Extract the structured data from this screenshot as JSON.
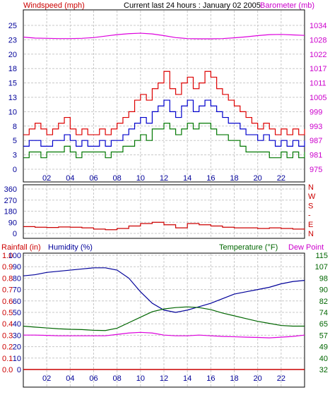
{
  "header": {
    "left_label": "Windspeed (mph)",
    "title": "Current last 24 hours : January 02 2005",
    "right_label": "Barometer (mb)"
  },
  "colors": {
    "background": "#ffffff",
    "frame": "#000000",
    "grid": "#c8c8c8",
    "wind": "#dd0000",
    "gust": "#ff0000",
    "wind_avg": "#0000cc",
    "wind_min": "#007700",
    "barometer": "#dd00dd",
    "direction": "#cc0000",
    "humidity": "#000099",
    "temperature": "#006600",
    "dew_point": "#dd00dd",
    "rainfall": "#cc0000",
    "label_red": "#cc0000",
    "label_blue": "#000099",
    "label_green": "#006600",
    "label_magenta": "#cc00cc"
  },
  "x_axis": {
    "range_hours": [
      0,
      24
    ],
    "tick_labels": [
      "02",
      "04",
      "06",
      "08",
      "10",
      "12",
      "14",
      "16",
      "18",
      "20",
      "22"
    ]
  },
  "chart_data": [
    {
      "type": "line",
      "panel": "wind-barometer",
      "x_unit": "hour",
      "y_left": {
        "label": "Windspeed (mph)",
        "ticks": [
          "0",
          "3",
          "5",
          "8",
          "10",
          "13",
          "15",
          "18",
          "20",
          "23",
          "25"
        ],
        "range": [
          0,
          25
        ]
      },
      "y_right": {
        "label": "Barometer (mb)",
        "ticks": [
          "975",
          "981",
          "987",
          "993",
          "999",
          "1005",
          "1011",
          "1017",
          "1022",
          "1028",
          "1034"
        ],
        "range": [
          975,
          1034
        ]
      },
      "grid": true,
      "series": [
        {
          "name": "Windspeed (mph)",
          "axis": "left",
          "color": "#dd0000",
          "x": [
            0,
            0.5,
            1,
            1.5,
            2,
            2.5,
            3,
            3.5,
            4,
            4.5,
            5,
            5.5,
            6,
            6.5,
            7,
            7.5,
            8,
            8.5,
            9,
            9.5,
            10,
            10.5,
            11,
            11.5,
            12,
            12.5,
            13,
            13.5,
            14,
            14.5,
            15,
            15.5,
            16,
            16.5,
            17,
            17.5,
            18,
            18.5,
            19,
            19.5,
            20,
            20.5,
            21,
            21.5,
            22,
            22.5,
            23,
            23.5,
            24
          ],
          "values": [
            6,
            7,
            8,
            7,
            6,
            7,
            8,
            9,
            7,
            6,
            7,
            6,
            6,
            7,
            6,
            7,
            8,
            9,
            10,
            12,
            13,
            12,
            14,
            15,
            17,
            14,
            13,
            15,
            16,
            14,
            15,
            17,
            16,
            14,
            13,
            12,
            11,
            10,
            9,
            8,
            7,
            8,
            7,
            6,
            7,
            6,
            7,
            6,
            7
          ]
        },
        {
          "name": "Average wind",
          "axis": "left",
          "color": "#0000cc",
          "x": [
            0,
            0.5,
            1,
            1.5,
            2,
            2.5,
            3,
            3.5,
            4,
            4.5,
            5,
            5.5,
            6,
            6.5,
            7,
            7.5,
            8,
            8.5,
            9,
            9.5,
            10,
            10.5,
            11,
            11.5,
            12,
            12.5,
            13,
            13.5,
            14,
            14.5,
            15,
            15.5,
            16,
            16.5,
            17,
            17.5,
            18,
            18.5,
            19,
            19.5,
            20,
            20.5,
            21,
            21.5,
            22,
            22.5,
            23,
            23.5,
            24
          ],
          "values": [
            4,
            5,
            5,
            4,
            4,
            5,
            5,
            6,
            5,
            4,
            5,
            4,
            4,
            5,
            4,
            5,
            5,
            6,
            7,
            8,
            9,
            8,
            10,
            11,
            12,
            10,
            9,
            11,
            12,
            10,
            11,
            12,
            11,
            10,
            9,
            8,
            8,
            7,
            6,
            6,
            5,
            6,
            5,
            4,
            5,
            4,
            5,
            4,
            5
          ]
        },
        {
          "name": "Minimum wind",
          "axis": "left",
          "color": "#007700",
          "x": [
            0,
            0.5,
            1,
            1.5,
            2,
            2.5,
            3,
            3.5,
            4,
            4.5,
            5,
            5.5,
            6,
            6.5,
            7,
            7.5,
            8,
            8.5,
            9,
            9.5,
            10,
            10.5,
            11,
            11.5,
            12,
            12.5,
            13,
            13.5,
            14,
            14.5,
            15,
            15.5,
            16,
            16.5,
            17,
            17.5,
            18,
            18.5,
            19,
            19.5,
            20,
            20.5,
            21,
            21.5,
            22,
            22.5,
            23,
            23.5,
            24
          ],
          "values": [
            2,
            3,
            3,
            2,
            3,
            3,
            3,
            4,
            3,
            2,
            3,
            3,
            3,
            3,
            2,
            3,
            3,
            4,
            4,
            5,
            6,
            5,
            7,
            7,
            8,
            7,
            6,
            7,
            8,
            7,
            8,
            8,
            7,
            6,
            6,
            5,
            5,
            4,
            3,
            3,
            3,
            3,
            2,
            2,
            3,
            2,
            3,
            2,
            3
          ]
        },
        {
          "name": "Barometer (mb)",
          "axis": "right",
          "color": "#dd00dd",
          "x": [
            0,
            1,
            2,
            3,
            4,
            5,
            6,
            7,
            8,
            9,
            10,
            11,
            12,
            13,
            14,
            15,
            16,
            17,
            18,
            19,
            20,
            21,
            22,
            23,
            24
          ],
          "values": [
            1029.2,
            1028.8,
            1028.7,
            1028.6,
            1028.6,
            1028.7,
            1029.0,
            1029.6,
            1030.2,
            1030.6,
            1030.8,
            1030.5,
            1029.8,
            1029.0,
            1028.6,
            1028.5,
            1028.5,
            1028.6,
            1028.9,
            1029.3,
            1029.8,
            1030.2,
            1030.3,
            1030.1,
            1029.9
          ]
        }
      ]
    },
    {
      "type": "line",
      "panel": "wind-direction",
      "x_unit": "hour",
      "y_left": {
        "ticks": [
          "0",
          "90",
          "180",
          "270",
          "360"
        ],
        "range": [
          0,
          360
        ]
      },
      "y_right": {
        "ticks": [
          "N",
          "W",
          "S",
          "-",
          "E",
          "N"
        ]
      },
      "grid": true,
      "series": [
        {
          "name": "Wind direction",
          "color": "#cc0000",
          "x": [
            0,
            1,
            2,
            3,
            4,
            5,
            6,
            7,
            8,
            9,
            10,
            11,
            12,
            13,
            14,
            15,
            16,
            17,
            18,
            19,
            20,
            21,
            22,
            23,
            24
          ],
          "values": [
            55,
            50,
            48,
            52,
            50,
            45,
            35,
            30,
            40,
            60,
            80,
            90,
            70,
            45,
            80,
            70,
            60,
            50,
            45,
            45,
            40,
            45,
            40,
            35,
            30
          ]
        }
      ]
    },
    {
      "type": "line",
      "panel": "humidity-temperature",
      "x_unit": "hour",
      "y_rain": {
        "label": "Rainfall (in)",
        "ticks": [
          "0.0",
          "0.1",
          "0.2",
          "0.3",
          "0.4",
          "0.5",
          "0.6",
          "0.7",
          "0.8",
          "0.9",
          "1.0"
        ],
        "range": [
          0,
          1
        ]
      },
      "y_humidity": {
        "label": "Humidity (%)",
        "ticks": [
          "0",
          "10",
          "20",
          "30",
          "40",
          "50",
          "60",
          "70",
          "80",
          "90",
          "100"
        ],
        "range": [
          0,
          100
        ]
      },
      "y_temperature": {
        "label": "Temperature (°F)",
        "label2": "Dew Point",
        "ticks": [
          "32",
          "40",
          "49",
          "57",
          "65",
          "74",
          "82",
          "90",
          "98",
          "107",
          "115"
        ],
        "range": [
          32,
          115
        ]
      },
      "grid": true,
      "series": [
        {
          "name": "Humidity (%)",
          "axis": "humidity",
          "color": "#000099",
          "x": [
            0,
            1,
            2,
            3,
            4,
            5,
            6,
            7,
            8,
            9,
            10,
            11,
            12,
            13,
            14,
            15,
            16,
            17,
            18,
            19,
            20,
            21,
            22,
            23,
            24
          ],
          "values": [
            82,
            83,
            85,
            86,
            87,
            88,
            89,
            89,
            87,
            80,
            68,
            58,
            52,
            50,
            52,
            55,
            58,
            62,
            66,
            68,
            70,
            72,
            75,
            77,
            78
          ]
        },
        {
          "name": "Temperature (°F)",
          "axis": "temperature",
          "color": "#006600",
          "x": [
            0,
            1,
            2,
            3,
            4,
            5,
            6,
            7,
            8,
            9,
            10,
            11,
            12,
            13,
            14,
            15,
            16,
            17,
            18,
            19,
            20,
            21,
            22,
            23,
            24
          ],
          "values": [
            63.5,
            62.8,
            62.2,
            61.6,
            61.2,
            61.0,
            60.5,
            60.3,
            62.0,
            66.0,
            70.0,
            74.0,
            76.0,
            77.0,
            77.5,
            77.0,
            75.5,
            73.0,
            71.0,
            69.0,
            67.0,
            65.5,
            64.0,
            63.5,
            63.5
          ]
        },
        {
          "name": "Dew Point",
          "axis": "temperature",
          "color": "#dd00dd",
          "x": [
            0,
            1,
            2,
            3,
            4,
            5,
            6,
            7,
            8,
            9,
            10,
            11,
            12,
            13,
            14,
            15,
            16,
            17,
            18,
            19,
            20,
            21,
            22,
            23,
            24
          ],
          "values": [
            57.0,
            57.0,
            56.8,
            56.5,
            56.5,
            56.5,
            56.5,
            56.5,
            57.5,
            58.5,
            59.0,
            58.5,
            57.0,
            56.5,
            56.5,
            57.0,
            56.5,
            56.0,
            55.8,
            55.5,
            55.3,
            55.0,
            55.5,
            56.0,
            57.0
          ]
        },
        {
          "name": "Rainfall (in)",
          "axis": "rain",
          "color": "#cc0000",
          "x": [
            0,
            24
          ],
          "values": [
            0,
            0
          ]
        }
      ]
    }
  ]
}
